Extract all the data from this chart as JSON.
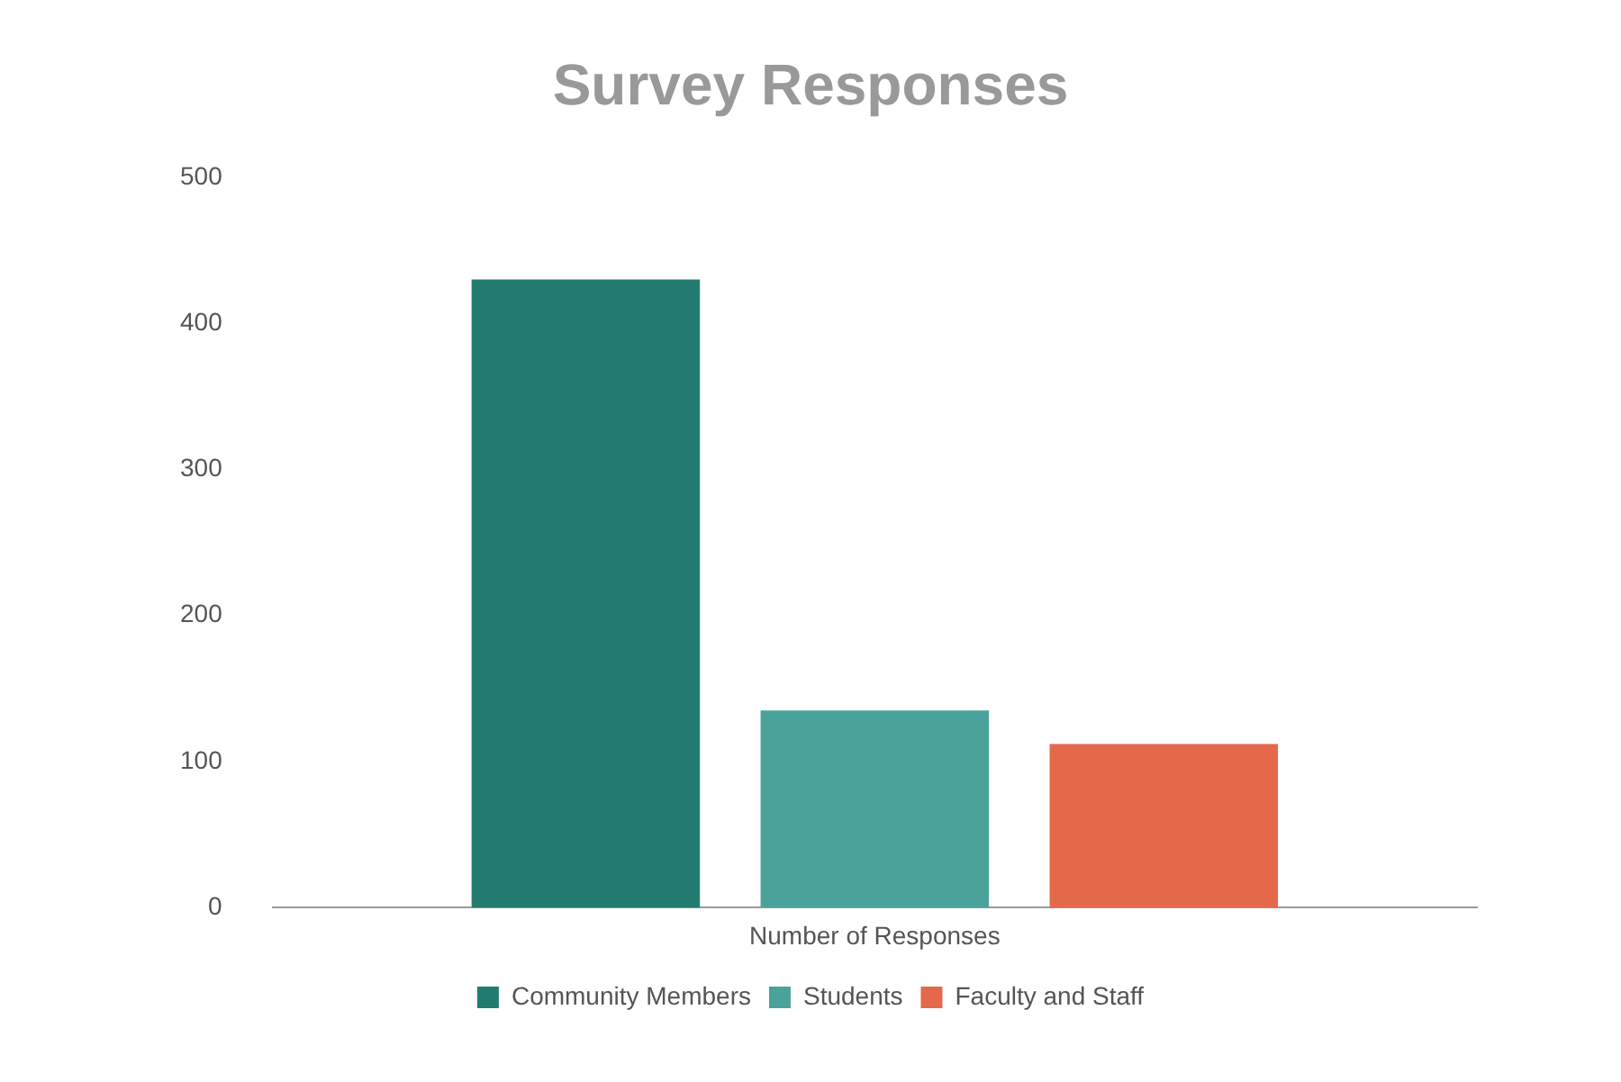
{
  "chart_data": {
    "type": "bar",
    "title": "Survey Responses",
    "categories": [
      "Number of Responses"
    ],
    "series": [
      {
        "name": "Community Members",
        "color": "#217c6f",
        "values": [
          430
        ]
      },
      {
        "name": "Students",
        "color": "#4aa39a",
        "values": [
          135
        ]
      },
      {
        "name": "Faculty and Staff",
        "color": "#e3694a",
        "values": [
          112
        ]
      }
    ],
    "ylim": [
      0,
      500
    ],
    "yticks": [
      0,
      100,
      200,
      300,
      400,
      500
    ],
    "grid": false,
    "legend": "bottom"
  }
}
